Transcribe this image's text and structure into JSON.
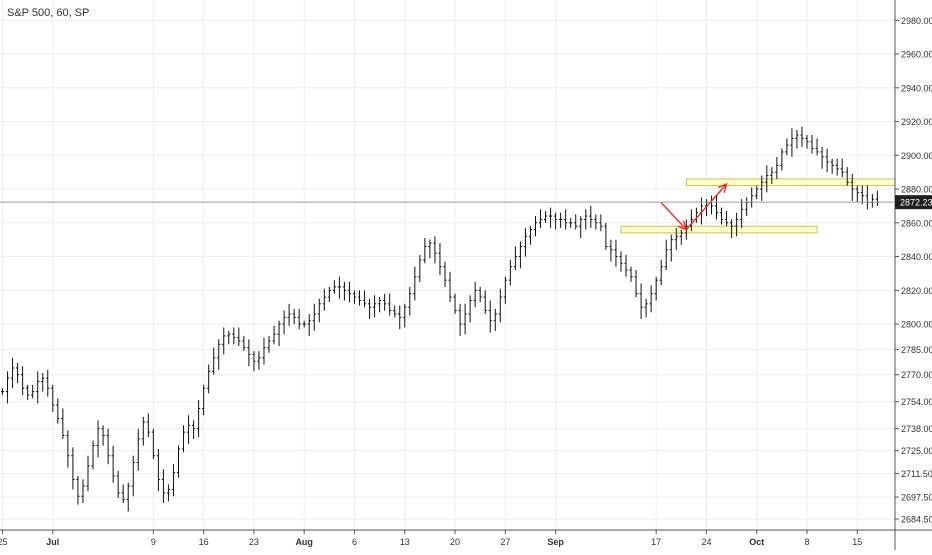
{
  "header": {
    "symbol_line": "S&P 500, 60, SP"
  },
  "chart_data": {
    "type": "candlestick-ohlc",
    "title": "S&P 500, 60, SP",
    "y_axis": {
      "side": "right",
      "ylim": [
        2678,
        2992
      ],
      "ticks": [
        2980,
        2960,
        2940,
        2920,
        2900,
        2880,
        2860,
        2840,
        2820,
        2800,
        2785,
        2770,
        2754,
        2738,
        2725,
        2711.5,
        2697.5,
        2684.5
      ],
      "tick_labels": [
        "2980.00",
        "2960.00",
        "2940.00",
        "2920.00",
        "2900.00",
        "2880.00",
        "2860.00",
        "2840.00",
        "2820.00",
        "2800.00",
        "2785.00",
        "2770.00",
        "2754.00",
        "2738.00",
        "2725.00",
        "2711.50",
        "2697.50",
        "2684.50"
      ]
    },
    "x_axis": {
      "tick_labels": [
        "25",
        "Jul",
        "9",
        "16",
        "23",
        "Aug",
        "6",
        "13",
        "20",
        "27",
        "Sep",
        "17",
        "24",
        "Oct",
        "8",
        "15"
      ],
      "bold_labels": [
        "Jul",
        "Aug",
        "Sep",
        "Oct"
      ],
      "tick_index": [
        0,
        10,
        30,
        40,
        50,
        60,
        70,
        80,
        90,
        100,
        110,
        130,
        140,
        150,
        160,
        170
      ]
    },
    "price_line": {
      "value": 2872.23,
      "label": "2872.23"
    },
    "series": [
      {
        "closes": [
          2760,
          2768,
          2774,
          2770,
          2762,
          2758,
          2760,
          2766,
          2768,
          2762,
          2752,
          2744,
          2734,
          2722,
          2708,
          2698,
          2704,
          2716,
          2728,
          2738,
          2734,
          2722,
          2710,
          2700,
          2696,
          2704,
          2718,
          2732,
          2742,
          2736,
          2722,
          2708,
          2700,
          2702,
          2712,
          2726,
          2736,
          2740,
          2738,
          2750,
          2762,
          2772,
          2780,
          2788,
          2793,
          2794,
          2792,
          2790,
          2786,
          2782,
          2778,
          2780,
          2786,
          2790,
          2794,
          2800,
          2804,
          2806,
          2804,
          2800,
          2800,
          2802,
          2806,
          2812,
          2816,
          2820,
          2822,
          2822,
          2820,
          2818,
          2816,
          2814,
          2812,
          2810,
          2812,
          2814,
          2812,
          2808,
          2806,
          2804,
          2810,
          2818,
          2828,
          2838,
          2846,
          2848,
          2842,
          2834,
          2826,
          2816,
          2808,
          2800,
          2806,
          2814,
          2820,
          2816,
          2808,
          2802,
          2806,
          2816,
          2826,
          2834,
          2840,
          2846,
          2852,
          2856,
          2860,
          2862,
          2864,
          2864,
          2862,
          2862,
          2860,
          2860,
          2858,
          2862,
          2864,
          2862,
          2860,
          2858,
          2846,
          2844,
          2840,
          2836,
          2832,
          2828,
          2818,
          2810,
          2812,
          2818,
          2826,
          2834,
          2844,
          2850,
          2852,
          2854,
          2858,
          2862,
          2866,
          2870,
          2872,
          2870,
          2866,
          2862,
          2860,
          2858,
          2862,
          2868,
          2872,
          2876,
          2880,
          2884,
          2888,
          2890,
          2894,
          2902,
          2906,
          2910,
          2912,
          2910,
          2908,
          2904,
          2902,
          2899,
          2896,
          2894,
          2892,
          2890,
          2884,
          2880,
          2878,
          2876,
          2872,
          2874,
          2872
        ]
      }
    ],
    "annotations": {
      "zones": [
        {
          "low": 2882,
          "high": 2886,
          "start": 136,
          "end": 200,
          "color": "#ffffc8",
          "stroke": "#b9b24a"
        },
        {
          "low": 2854,
          "high": 2858,
          "start": 123,
          "end": 162,
          "color": "#ffffc8",
          "stroke": "#b9b24a"
        }
      ],
      "arrows": [
        {
          "points": [
            [
              131,
              2872
            ],
            [
              136,
              2856
            ],
            [
              144,
              2883
            ]
          ],
          "color": "#ff1a1a"
        }
      ]
    }
  }
}
